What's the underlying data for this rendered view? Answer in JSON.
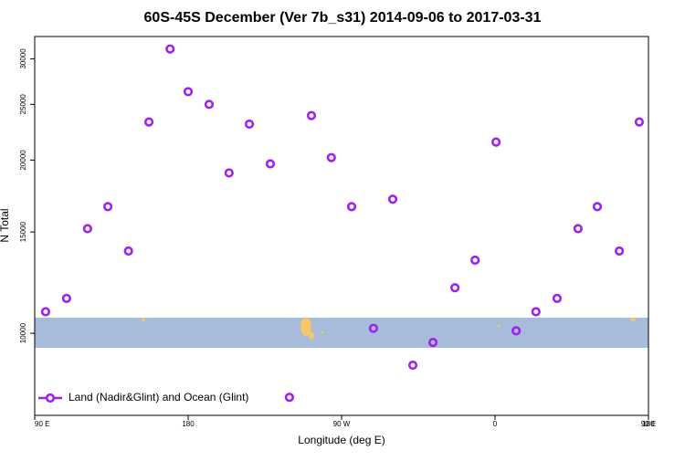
{
  "chart_data": {
    "type": "scatter",
    "title": "60S-45S December (Ver 7b_s31)   2014-09-06 to 2017-03-31",
    "x_label": "Longitude (deg E)",
    "y_label": "N Total",
    "series": [
      {
        "name": "Land (Nadir&Glint) and Ocean (Glint)",
        "color": "#a020f0",
        "x": [
          96.4,
          108.7,
          121,
          132.9,
          145,
          157,
          169.4,
          180,
          192.3,
          204,
          215.9,
          228.2,
          239.4,
          252.3,
          264,
          275.9,
          288.7,
          300,
          311.8,
          323.6,
          336.5,
          348.3,
          360.6,
          372.4,
          384,
          396.4,
          408.7,
          420,
          432.9,
          444.6
        ],
        "values": [
          10900,
          11500,
          15200,
          16600,
          13900,
          23300,
          31200,
          26300,
          25000,
          19000,
          23100,
          19700,
          7740,
          23900,
          20200,
          16600,
          10200,
          17100,
          8800,
          9640,
          12000,
          13400,
          21500,
          10100,
          10900,
          11500,
          15200,
          16600,
          13900,
          23300
        ]
      }
    ],
    "xlim": [
      90,
      450
    ],
    "xticks": [
      {
        "value": 90,
        "label": "90 E"
      },
      {
        "value": 180,
        "label": "180"
      },
      {
        "value": 270,
        "label": "90 W"
      },
      {
        "value": 360,
        "label": "0"
      },
      {
        "value": 450,
        "label": "90 E"
      },
      {
        "value": 540,
        "label": "180"
      }
    ],
    "ylim": [
      7200,
      32800
    ],
    "yticks": [
      10000,
      15000,
      20000,
      25000,
      30000
    ],
    "log_y": true,
    "legend": "bottom-left"
  }
}
